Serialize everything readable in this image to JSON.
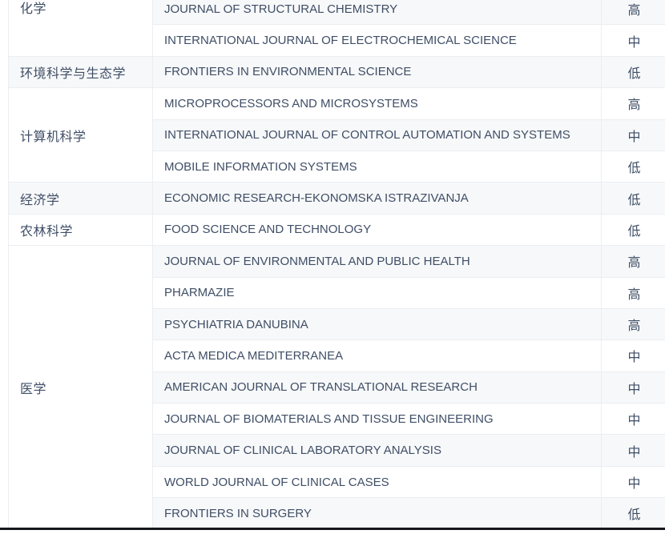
{
  "table": {
    "description": "journal risk-level table",
    "level_values": {
      "high": "高",
      "medium": "中",
      "low": "低"
    },
    "categories": [
      {
        "label": "化学",
        "rowspan": 2
      },
      {
        "label": "环境科学与生态学",
        "rowspan": 1
      },
      {
        "label": "计算机科学",
        "rowspan": 3
      },
      {
        "label": "经济学",
        "rowspan": 1
      },
      {
        "label": "农林科学",
        "rowspan": 1
      },
      {
        "label": "医学",
        "rowspan": 9
      }
    ],
    "rows": [
      {
        "journal": "JOURNAL OF STRUCTURAL CHEMISTRY",
        "level": "高"
      },
      {
        "journal": "INTERNATIONAL JOURNAL OF ELECTROCHEMICAL SCIENCE",
        "level": "中"
      },
      {
        "journal": "FRONTIERS IN ENVIRONMENTAL SCIENCE",
        "level": "低"
      },
      {
        "journal": "MICROPROCESSORS AND MICROSYSTEMS",
        "level": "高"
      },
      {
        "journal": "INTERNATIONAL JOURNAL OF CONTROL AUTOMATION AND SYSTEMS",
        "level": "中"
      },
      {
        "journal": "MOBILE INFORMATION SYSTEMS",
        "level": "低"
      },
      {
        "journal": "ECONOMIC RESEARCH-EKONOMSKA ISTRAZIVANJA",
        "level": "低"
      },
      {
        "journal": "FOOD SCIENCE AND TECHNOLOGY",
        "level": "低"
      },
      {
        "journal": "JOURNAL OF ENVIRONMENTAL AND PUBLIC HEALTH",
        "level": "高"
      },
      {
        "journal": "PHARMAZIE",
        "level": "高"
      },
      {
        "journal": "PSYCHIATRIA DANUBINA",
        "level": "高"
      },
      {
        "journal": "ACTA MEDICA MEDITERRANEA",
        "level": "中"
      },
      {
        "journal": "AMERICAN JOURNAL OF TRANSLATIONAL RESEARCH",
        "level": "中"
      },
      {
        "journal": "JOURNAL OF BIOMATERIALS AND TISSUE ENGINEERING",
        "level": "中"
      },
      {
        "journal": "JOURNAL OF CLINICAL LABORATORY ANALYSIS",
        "level": "中"
      },
      {
        "journal": "WORLD JOURNAL OF CLINICAL CASES",
        "level": "中"
      },
      {
        "journal": "FRONTIERS IN SURGERY",
        "level": "低"
      }
    ]
  },
  "colors": {
    "text": "#3f4e66",
    "border": "#ebedf1",
    "stripe_background": "#f7f8f9",
    "bottom_rule": "#15171c",
    "page_background": "#ffffff"
  }
}
